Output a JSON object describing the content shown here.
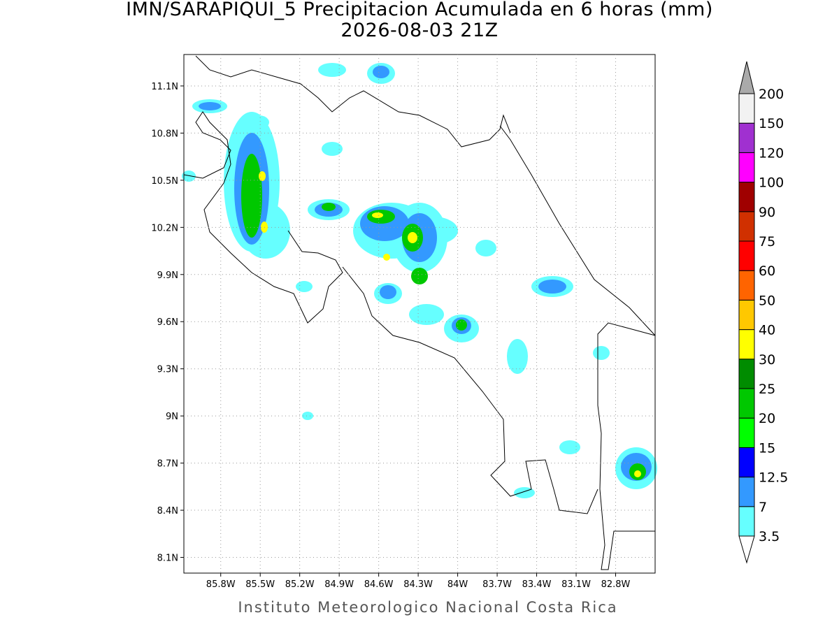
{
  "title": "IMN/SARAPIQUI_5 Precipitacion Acumulada en 6 horas (mm)",
  "subtitle": "2026-08-03 21Z",
  "footer": "Instituto Meteorologico Nacional Costa Rica",
  "map": {
    "xlim": [
      -86.08,
      -82.5
    ],
    "ylim": [
      8.0,
      11.3
    ],
    "xticks": [
      {
        "value": -85.8,
        "label": "85.8W"
      },
      {
        "value": -85.5,
        "label": "85.5W"
      },
      {
        "value": -85.2,
        "label": "85.2W"
      },
      {
        "value": -84.9,
        "label": "84.9W"
      },
      {
        "value": -84.6,
        "label": "84.6W"
      },
      {
        "value": -84.3,
        "label": "84.3W"
      },
      {
        "value": -84.0,
        "label": "84W"
      },
      {
        "value": -83.7,
        "label": "83.7W"
      },
      {
        "value": -83.4,
        "label": "83.4W"
      },
      {
        "value": -83.1,
        "label": "83.1W"
      },
      {
        "value": -82.8,
        "label": "82.8W"
      }
    ],
    "yticks": [
      {
        "value": 8.1,
        "label": "8.1N"
      },
      {
        "value": 8.4,
        "label": "8.4N"
      },
      {
        "value": 8.7,
        "label": "8.7N"
      },
      {
        "value": 9.0,
        "label": "9N"
      },
      {
        "value": 9.3,
        "label": "9.3N"
      },
      {
        "value": 9.6,
        "label": "9.6N"
      },
      {
        "value": 9.9,
        "label": "9.9N"
      },
      {
        "value": 10.2,
        "label": "10.2N"
      },
      {
        "value": 10.5,
        "label": "10.5N"
      },
      {
        "value": 10.8,
        "label": "10.8N"
      },
      {
        "value": 11.1,
        "label": "11.1N"
      }
    ],
    "grid": true
  },
  "legend": {
    "levels": [
      3.5,
      7,
      12.5,
      15,
      20,
      25,
      30,
      40,
      50,
      60,
      75,
      90,
      100,
      120,
      150,
      200
    ],
    "colors": [
      "#66ffff",
      "#3399ff",
      "#0000ff",
      "#00ff00",
      "#00c800",
      "#008c00",
      "#ffff00",
      "#ffc800",
      "#ff6400",
      "#ff0000",
      "#d03000",
      "#a00000",
      "#ff00ff",
      "#a030d0",
      "#f2f2f2"
    ],
    "below_color": "#ffffff",
    "above_color": "#aaaaaa"
  }
}
